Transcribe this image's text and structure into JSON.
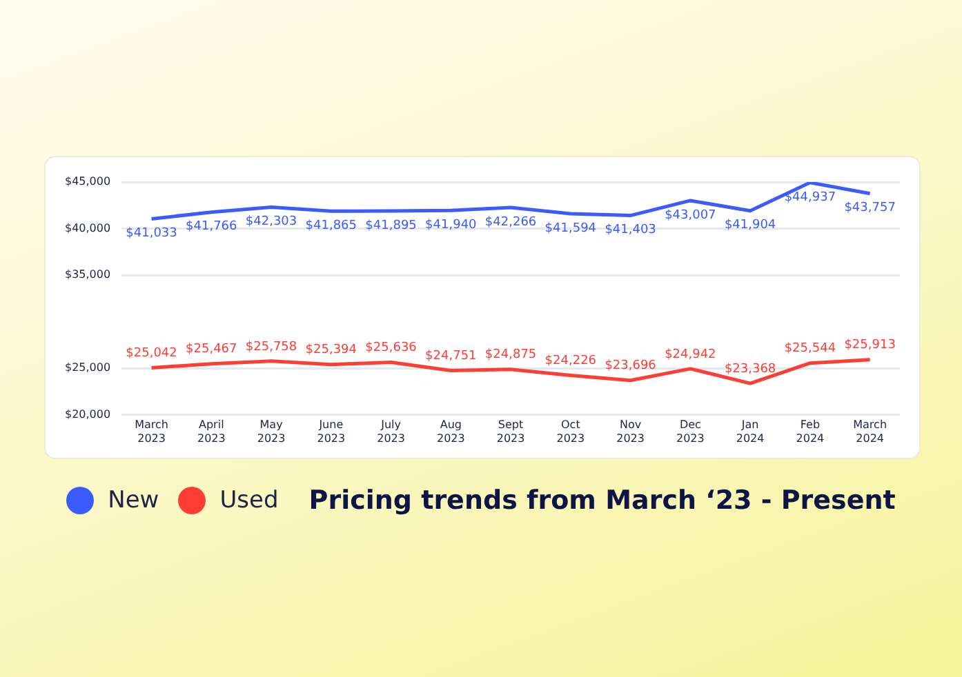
{
  "chart_data": {
    "type": "line",
    "title": "Pricing trends from March ‘23 - Present",
    "categories": [
      "March 2023",
      "April 2023",
      "May 2023",
      "June 2023",
      "July 2023",
      "Aug 2023",
      "Sept 2023",
      "Oct 2023",
      "Nov 2023",
      "Dec 2023",
      "Jan 2024",
      "Feb 2024",
      "March 2024"
    ],
    "series": [
      {
        "name": "New",
        "color": "#3b5bfd",
        "values": [
          41033,
          41766,
          42303,
          41865,
          41895,
          41940,
          42266,
          41594,
          41403,
          43007,
          41904,
          44937,
          43757
        ],
        "value_labels": [
          "$41,033",
          "$41,766",
          "$42,303",
          "$41,865",
          "$41,895",
          "$41,940",
          "$42,266",
          "$41,594",
          "$41,403",
          "$43,007",
          "$41,904",
          "$44,937",
          "$43,757"
        ]
      },
      {
        "name": "Used",
        "color": "#fd3e34",
        "values": [
          25042,
          25467,
          25758,
          25394,
          25636,
          24751,
          24875,
          24226,
          23696,
          24942,
          23368,
          25544,
          25913
        ],
        "value_labels": [
          "$25,042",
          "$25,467",
          "$25,758",
          "$25,394",
          "$25,636",
          "$24,751",
          "$24,875",
          "$24,226",
          "$23,696",
          "$24,942",
          "$23,368",
          "$25,544",
          "$25,913"
        ]
      }
    ],
    "ylim": [
      20000,
      45000
    ],
    "yticks": [
      {
        "value": 20000,
        "label": "$20,000"
      },
      {
        "value": 25000,
        "label": "$25,000"
      },
      {
        "value": 35000,
        "label": "$35,000"
      },
      {
        "value": 40000,
        "label": "$40,000"
      },
      {
        "value": 45000,
        "label": "$45,000"
      }
    ],
    "grid": "y",
    "legend": "bottom",
    "marker": "none",
    "line_style": "solid"
  }
}
